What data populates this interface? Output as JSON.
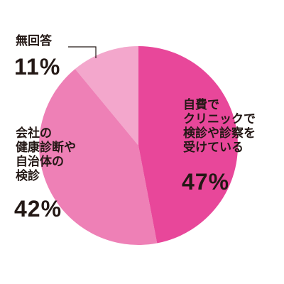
{
  "chart_data": {
    "type": "pie",
    "categories": [
      "自費で\nクリニックで\n検診や診察を\n受けている",
      "会社の\n健康診断や\n自治体の\n検診",
      "無回答"
    ],
    "values": [
      47,
      42,
      11
    ],
    "value_labels": [
      "47%",
      "42%",
      "11%"
    ],
    "colors": [
      "#e8479a",
      "#ee80b6",
      "#f3a7cc"
    ]
  }
}
